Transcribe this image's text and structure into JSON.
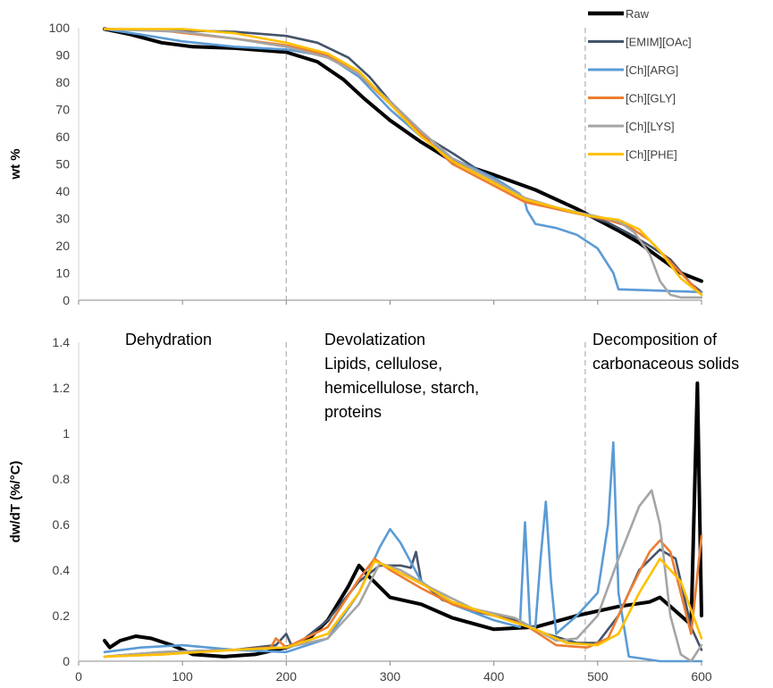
{
  "chart_data": [
    {
      "type": "line",
      "panel": "top",
      "xlabel": "",
      "ylabel": "wt %",
      "xlim": [
        0,
        600
      ],
      "ylim": [
        0,
        100
      ],
      "yticks": [
        0,
        10,
        20,
        30,
        40,
        50,
        60,
        70,
        80,
        90,
        100
      ],
      "grid": false,
      "legend": "right",
      "series": [
        {
          "name": "Raw",
          "color": "#000000",
          "x": [
            25,
            50,
            80,
            110,
            150,
            200,
            230,
            255,
            275,
            300,
            330,
            360,
            400,
            440,
            480,
            500,
            520,
            540,
            560,
            580,
            600
          ],
          "y": [
            99.5,
            97.5,
            94.5,
            93,
            92.5,
            91,
            87.5,
            81,
            74,
            66,
            58,
            51,
            46,
            40.5,
            33.5,
            29.5,
            25.5,
            21,
            15.5,
            10,
            7
          ]
        },
        {
          "name": "[EMIM][OAc]",
          "color": "#44546A",
          "x": [
            25,
            100,
            150,
            200,
            230,
            260,
            280,
            300,
            330,
            360,
            400,
            430,
            460,
            490,
            510,
            530,
            550,
            570,
            590,
            600
          ],
          "y": [
            99.5,
            99,
            98.5,
            97,
            94.5,
            89,
            82,
            73,
            61,
            54,
            44,
            37,
            33.5,
            31,
            28.5,
            24.5,
            20,
            15,
            6,
            3
          ]
        },
        {
          "name": "[Ch][ARG]",
          "color": "#5B9BD5",
          "x": [
            25,
            60,
            100,
            150,
            200,
            240,
            270,
            300,
            330,
            360,
            400,
            425,
            430,
            432,
            440,
            460,
            480,
            500,
            515,
            520,
            560,
            600
          ],
          "y": [
            99.5,
            97.5,
            95,
            93,
            92,
            89.5,
            82,
            70,
            60,
            52,
            45,
            39,
            36,
            33,
            28,
            26.5,
            24,
            19,
            10,
            4,
            3.5,
            3
          ]
        },
        {
          "name": "[Ch][GLY]",
          "color": "#ED7D31",
          "x": [
            25,
            80,
            150,
            200,
            240,
            270,
            300,
            330,
            360,
            400,
            430,
            460,
            490,
            510,
            530,
            550,
            570,
            590,
            600
          ],
          "y": [
            99.5,
            99,
            96,
            93.5,
            90,
            83,
            72,
            61,
            50,
            42,
            36,
            33.5,
            31,
            29.5,
            27,
            22,
            14,
            6,
            2
          ]
        },
        {
          "name": "[Ch][LYS]",
          "color": "#A5A5A5",
          "x": [
            25,
            100,
            150,
            200,
            240,
            270,
            300,
            330,
            360,
            400,
            430,
            460,
            490,
            520,
            535,
            550,
            560,
            570,
            580,
            600
          ],
          "y": [
            99.5,
            98.5,
            96,
            93,
            89,
            83,
            73,
            62,
            52,
            44,
            37.5,
            34,
            31.5,
            29,
            25,
            17,
            7,
            2,
            1,
            1
          ]
        },
        {
          "name": "[Ch][PHE]",
          "color": "#FFC000",
          "x": [
            25,
            100,
            150,
            200,
            240,
            270,
            300,
            330,
            360,
            400,
            430,
            460,
            490,
            520,
            540,
            560,
            580,
            600
          ],
          "y": [
            99.5,
            99.5,
            98,
            94.5,
            90.5,
            84,
            72,
            60,
            51,
            43,
            37,
            34,
            31,
            29.5,
            26,
            18,
            8,
            2
          ]
        }
      ]
    },
    {
      "type": "line",
      "panel": "bottom",
      "xlabel": "",
      "ylabel": "dw/dT (%/°C)",
      "xlim": [
        0,
        600
      ],
      "ylim": [
        0,
        1.4
      ],
      "xticks": [
        0,
        100,
        200,
        300,
        400,
        500,
        600
      ],
      "yticks": [
        0,
        0.2,
        0.4,
        0.6,
        0.8,
        1,
        1.2,
        1.4
      ],
      "ytick_labels": [
        "0",
        "0.2",
        "0.4",
        "0.6",
        "0.8",
        "1",
        "1.2",
        "1.4"
      ],
      "grid": false,
      "series": [
        {
          "name": "Raw",
          "color": "#000000",
          "x": [
            25,
            30,
            40,
            55,
            70,
            90,
            110,
            140,
            170,
            200,
            220,
            240,
            260,
            270,
            280,
            300,
            330,
            360,
            400,
            440,
            480,
            520,
            550,
            560,
            575,
            590,
            596,
            600
          ],
          "y": [
            0.09,
            0.06,
            0.09,
            0.11,
            0.1,
            0.07,
            0.03,
            0.02,
            0.03,
            0.06,
            0.09,
            0.18,
            0.33,
            0.42,
            0.37,
            0.28,
            0.25,
            0.19,
            0.14,
            0.15,
            0.2,
            0.24,
            0.26,
            0.28,
            0.22,
            0.16,
            1.22,
            0.2
          ]
        },
        {
          "name": "[EMIM][OAc]",
          "color": "#44546A",
          "x": [
            25,
            80,
            150,
            190,
            200,
            205,
            215,
            240,
            270,
            290,
            310,
            320,
            325,
            330,
            350,
            380,
            420,
            450,
            480,
            500,
            520,
            540,
            560,
            575,
            590,
            600
          ],
          "y": [
            0.02,
            0.04,
            0.05,
            0.07,
            0.12,
            0.07,
            0.09,
            0.18,
            0.35,
            0.42,
            0.42,
            0.41,
            0.48,
            0.35,
            0.27,
            0.22,
            0.18,
            0.12,
            0.08,
            0.08,
            0.2,
            0.4,
            0.49,
            0.45,
            0.15,
            0.05
          ]
        },
        {
          "name": "[Ch][ARG]",
          "color": "#5B9BD5",
          "x": [
            25,
            60,
            100,
            150,
            200,
            240,
            270,
            290,
            300,
            310,
            330,
            360,
            400,
            425,
            430,
            435,
            440,
            445,
            450,
            455,
            460,
            480,
            500,
            510,
            515,
            520,
            530,
            560,
            590,
            600
          ],
          "y": [
            0.04,
            0.06,
            0.07,
            0.05,
            0.04,
            0.1,
            0.3,
            0.5,
            0.58,
            0.52,
            0.35,
            0.25,
            0.18,
            0.15,
            0.61,
            0.15,
            0.15,
            0.45,
            0.7,
            0.35,
            0.12,
            0.2,
            0.3,
            0.6,
            0.96,
            0.3,
            0.02,
            0.0,
            0.0,
            0.0
          ]
        },
        {
          "name": "[Ch][GLY]",
          "color": "#ED7D31",
          "x": [
            25,
            80,
            150,
            185,
            190,
            200,
            240,
            270,
            285,
            300,
            330,
            360,
            400,
            430,
            460,
            490,
            510,
            530,
            550,
            560,
            570,
            590,
            600
          ],
          "y": [
            0.02,
            0.03,
            0.05,
            0.06,
            0.1,
            0.06,
            0.15,
            0.36,
            0.45,
            0.4,
            0.32,
            0.25,
            0.2,
            0.16,
            0.07,
            0.06,
            0.1,
            0.3,
            0.48,
            0.53,
            0.48,
            0.12,
            0.55
          ]
        },
        {
          "name": "[Ch][LYS]",
          "color": "#A5A5A5",
          "x": [
            25,
            80,
            150,
            200,
            240,
            270,
            290,
            310,
            340,
            380,
            420,
            460,
            480,
            500,
            520,
            540,
            552,
            560,
            570,
            580,
            590,
            600
          ],
          "y": [
            0.02,
            0.04,
            0.05,
            0.06,
            0.1,
            0.25,
            0.43,
            0.4,
            0.32,
            0.23,
            0.19,
            0.09,
            0.1,
            0.2,
            0.45,
            0.68,
            0.75,
            0.6,
            0.2,
            0.03,
            0.0,
            0.07
          ]
        },
        {
          "name": "[Ch][PHE]",
          "color": "#FFC000",
          "x": [
            25,
            80,
            150,
            200,
            240,
            270,
            285,
            300,
            330,
            360,
            400,
            440,
            470,
            500,
            520,
            540,
            560,
            580,
            600
          ],
          "y": [
            0.02,
            0.03,
            0.05,
            0.06,
            0.12,
            0.3,
            0.44,
            0.41,
            0.34,
            0.26,
            0.2,
            0.14,
            0.08,
            0.07,
            0.12,
            0.3,
            0.45,
            0.35,
            0.1
          ]
        }
      ]
    }
  ],
  "regions": {
    "dehydration": [
      "Dehydration"
    ],
    "devolatization": [
      "Devolatization",
      "Lipids, cellulose,",
      "hemicellulose, starch,",
      "proteins"
    ],
    "decomposition": [
      "Decomposition of",
      "carbonaceous solids"
    ]
  },
  "dividers_x": [
    200,
    488
  ]
}
